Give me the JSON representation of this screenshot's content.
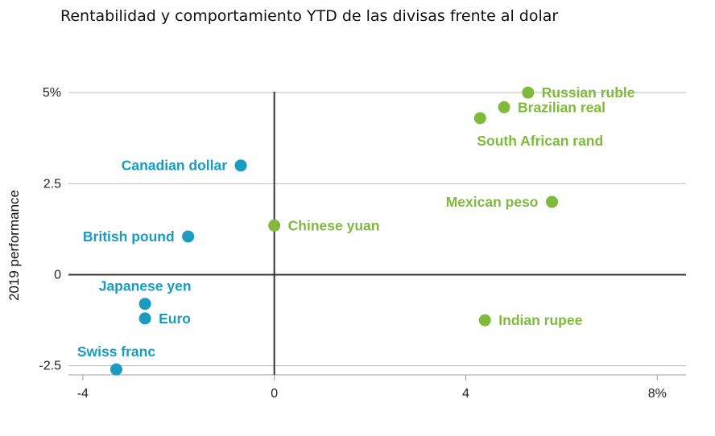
{
  "chart_data": {
    "type": "scatter",
    "title": "Rentabilidad y comportamiento YTD de las divisas frente al dolar",
    "xlabel": "",
    "ylabel": "2019 performance",
    "xlim": [
      -4.3,
      8.6
    ],
    "ylim": [
      -2.75,
      5.6
    ],
    "x_ticks": [
      {
        "value": -4,
        "label": "-4"
      },
      {
        "value": 0,
        "label": "0"
      },
      {
        "value": 4,
        "label": "4"
      },
      {
        "value": 8,
        "label": "8%"
      }
    ],
    "y_ticks": [
      {
        "value": 5,
        "label": "5%"
      },
      {
        "value": 2.5,
        "label": "2.5"
      },
      {
        "value": 0,
        "label": "0"
      },
      {
        "value": -2.5,
        "label": "-2.5"
      }
    ],
    "grid": "horizontal",
    "colors": {
      "blue": "#1a9bbf",
      "green": "#7fba3d"
    },
    "points": [
      {
        "name": "Russian ruble",
        "x": 5.3,
        "y": 5.0,
        "color": "green",
        "label_side": "right"
      },
      {
        "name": "Brazilian real",
        "x": 4.8,
        "y": 4.6,
        "color": "green",
        "label_side": "right"
      },
      {
        "name": "South African rand",
        "x": 4.3,
        "y": 4.3,
        "color": "green",
        "label_side": "below"
      },
      {
        "name": "Mexican peso",
        "x": 5.8,
        "y": 2.0,
        "color": "green",
        "label_side": "left"
      },
      {
        "name": "Chinese yuan",
        "x": 0.0,
        "y": 1.35,
        "color": "green",
        "label_side": "right"
      },
      {
        "name": "Indian rupee",
        "x": 4.4,
        "y": -1.25,
        "color": "green",
        "label_side": "right"
      },
      {
        "name": "Canadian dollar",
        "x": -0.7,
        "y": 3.0,
        "color": "blue",
        "label_side": "left"
      },
      {
        "name": "British pound",
        "x": -1.8,
        "y": 1.05,
        "color": "blue",
        "label_side": "left"
      },
      {
        "name": "Japanese yen",
        "x": -2.7,
        "y": -0.8,
        "color": "blue",
        "label_side": "above"
      },
      {
        "name": "Euro",
        "x": -2.7,
        "y": -1.2,
        "color": "blue",
        "label_side": "right"
      },
      {
        "name": "Swiss franc",
        "x": -3.3,
        "y": -2.6,
        "color": "blue",
        "label_side": "above"
      }
    ]
  }
}
